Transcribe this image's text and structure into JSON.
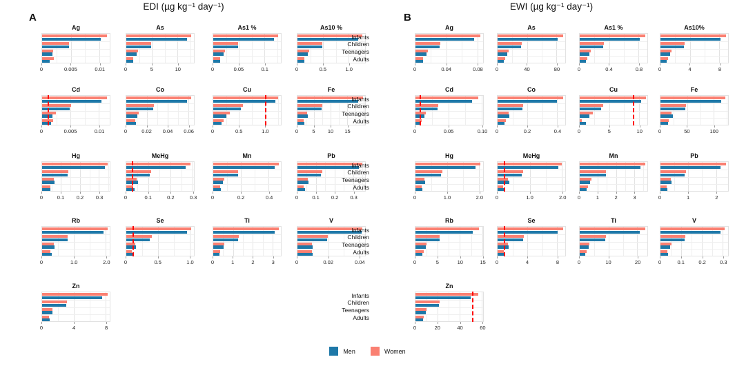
{
  "figure": {
    "panel_a_letter": "A",
    "panel_a_title": "EDI (µg kg⁻¹ day⁻¹)",
    "panel_b_letter": "B",
    "panel_b_title": "EWI (µg kg⁻¹ day⁻¹)"
  },
  "categories": [
    "Infants",
    "Children",
    "Teenagers",
    "Adults"
  ],
  "legend": {
    "men_label": "Men",
    "women_label": "Women"
  },
  "colors": {
    "men": "#1E78A8",
    "women": "#FA8072",
    "guideline": "#FF0000",
    "grid_major": "#e3e3e3",
    "grid_minor": "#efefef"
  },
  "chart_data": [
    {
      "panel": "A",
      "type": "bar",
      "orientation": "horizontal",
      "title": "EDI (µg kg⁻¹ day⁻¹)",
      "categories": [
        "Infants",
        "Children",
        "Teenagers",
        "Adults"
      ],
      "series_names": [
        "Men",
        "Women"
      ],
      "charts": [
        {
          "element": "Ag",
          "tick_labels": [
            "0",
            "0.005",
            "0.01"
          ],
          "ticks": [
            0,
            0.005,
            0.01
          ],
          "xmax": 0.0118,
          "guideline": null,
          "women": [
            0.0113,
            0.0047,
            0.0019,
            0.002
          ],
          "men": [
            0.0102,
            0.0047,
            0.0018,
            0.0013
          ]
        },
        {
          "element": "As",
          "tick_labels": [
            "0",
            "5",
            "10"
          ],
          "ticks": [
            0,
            5,
            10
          ],
          "xmax": 13.2,
          "guideline": null,
          "women": [
            12.7,
            4.9,
            2.3,
            1.4
          ],
          "men": [
            11.9,
            4.8,
            2.0,
            1.3
          ]
        },
        {
          "element": "As1 %",
          "tick_labels": [
            "0",
            "0.05",
            "0.1"
          ],
          "ticks": [
            0,
            0.05,
            0.1
          ],
          "xmax": 0.132,
          "guideline": null,
          "women": [
            0.127,
            0.049,
            0.023,
            0.014
          ],
          "men": [
            0.119,
            0.048,
            0.02,
            0.013
          ]
        },
        {
          "element": "As10 %",
          "tick_labels": [
            "0",
            "0.5",
            "1.0"
          ],
          "ticks": [
            0,
            0.5,
            1.0
          ],
          "xmax": 1.32,
          "guideline": null,
          "women": [
            1.27,
            0.49,
            0.23,
            0.14
          ],
          "men": [
            1.19,
            0.48,
            0.2,
            0.13
          ]
        },
        {
          "element": "Cd",
          "tick_labels": [
            "0",
            "0.005",
            "0.01"
          ],
          "ticks": [
            0,
            0.005,
            0.01
          ],
          "xmax": 0.0119,
          "guideline": 0.001,
          "women": [
            0.0114,
            0.0051,
            0.0024,
            0.0019
          ],
          "men": [
            0.0105,
            0.0049,
            0.0018,
            0.0016
          ]
        },
        {
          "element": "Co",
          "tick_labels": [
            "0",
            "0.02",
            "0.04",
            "0.06"
          ],
          "ticks": [
            0,
            0.02,
            0.04,
            0.06
          ],
          "xmax": 0.0655,
          "guideline": null,
          "women": [
            0.063,
            0.027,
            0.012,
            0.009
          ],
          "men": [
            0.059,
            0.026,
            0.0105,
            0.0092
          ]
        },
        {
          "element": "Cu",
          "tick_labels": [
            "0",
            "0.5",
            "1.0"
          ],
          "ticks": [
            0,
            0.5,
            1.0
          ],
          "xmax": 1.31,
          "guideline": 1.0,
          "women": [
            1.26,
            0.58,
            0.32,
            0.2
          ],
          "men": [
            1.2,
            0.53,
            0.25,
            0.16
          ]
        },
        {
          "element": "Fe",
          "tick_labels": [
            "0",
            "5",
            "10",
            "15"
          ],
          "ticks": [
            0,
            5,
            10,
            15
          ],
          "xmax": 20.4,
          "guideline": null,
          "women": [
            19.8,
            7.5,
            2.9,
            1.9
          ],
          "men": [
            18.3,
            7.3,
            3.1,
            2.1
          ]
        },
        {
          "element": "Hg",
          "tick_labels": [
            "0",
            "0.1",
            "0.2",
            "0.3"
          ],
          "ticks": [
            0,
            0.1,
            0.2,
            0.3
          ],
          "xmax": 0.357,
          "guideline": null,
          "women": [
            0.345,
            0.14,
            0.062,
            0.042
          ],
          "men": [
            0.33,
            0.133,
            0.066,
            0.045
          ]
        },
        {
          "element": "MeHg",
          "tick_labels": [
            "0",
            "0.1",
            "0.2",
            "0.3"
          ],
          "ticks": [
            0,
            0.1,
            0.2,
            0.3
          ],
          "xmax": 0.306,
          "guideline": 0.024,
          "women": [
            0.29,
            0.113,
            0.046,
            0.031
          ],
          "men": [
            0.27,
            0.107,
            0.052,
            0.037
          ]
        },
        {
          "element": "Mn",
          "tick_labels": [
            "0",
            "0.2",
            "0.4"
          ],
          "ticks": [
            0,
            0.2,
            0.4
          ],
          "xmax": 0.487,
          "guideline": null,
          "women": [
            0.47,
            0.18,
            0.078,
            0.049
          ],
          "men": [
            0.44,
            0.178,
            0.07,
            0.055
          ]
        },
        {
          "element": "Pb",
          "tick_labels": [
            "0",
            "0.1",
            "0.2",
            "0.3"
          ],
          "ticks": [
            0,
            0.1,
            0.2,
            0.3
          ],
          "xmax": 0.363,
          "guideline": null,
          "women": [
            0.35,
            0.134,
            0.055,
            0.035
          ],
          "men": [
            0.33,
            0.125,
            0.06,
            0.042
          ]
        },
        {
          "element": "Rb",
          "tick_labels": [
            "0",
            "1.0",
            "2.0"
          ],
          "ticks": [
            0,
            1.0,
            2.0
          ],
          "xmax": 2.12,
          "guideline": null,
          "women": [
            2.05,
            0.81,
            0.36,
            0.27
          ],
          "men": [
            1.92,
            0.79,
            0.38,
            0.3
          ]
        },
        {
          "element": "Se",
          "tick_labels": [
            "0",
            "0.5",
            "1.0"
          ],
          "ticks": [
            0,
            0.5,
            1.0
          ],
          "xmax": 1.07,
          "guideline": 0.095,
          "women": [
            1.03,
            0.4,
            0.14,
            0.085
          ],
          "men": [
            0.96,
            0.37,
            0.155,
            0.1
          ]
        },
        {
          "element": "Ti",
          "tick_labels": [
            "0",
            "1",
            "2",
            "3"
          ],
          "ticks": [
            0,
            1,
            2,
            3
          ],
          "xmax": 3.42,
          "guideline": null,
          "women": [
            3.3,
            1.3,
            0.55,
            0.34
          ],
          "men": [
            3.1,
            1.25,
            0.51,
            0.32
          ]
        },
        {
          "element": "V",
          "tick_labels": [
            "0",
            "0.02",
            "0.04"
          ],
          "ticks": [
            0,
            0.02,
            0.04
          ],
          "xmax": 0.0438,
          "guideline": null,
          "women": [
            0.042,
            0.0198,
            0.0095,
            0.0095
          ],
          "men": [
            0.0415,
            0.019,
            0.0098,
            0.01
          ]
        },
        {
          "element": "Zn",
          "tick_labels": [
            "0",
            "4",
            "8"
          ],
          "ticks": [
            0,
            4,
            8
          ],
          "xmax": 8.5,
          "guideline": null,
          "women": [
            8.2,
            3.1,
            1.33,
            0.87
          ],
          "men": [
            7.55,
            3.05,
            1.28,
            0.95
          ]
        }
      ]
    },
    {
      "panel": "B",
      "type": "bar",
      "orientation": "horizontal",
      "title": "EWI (µg kg⁻¹ day⁻¹)",
      "categories": [
        "Infants",
        "Children",
        "Teenagers",
        "Adults"
      ],
      "series_names": [
        "Men",
        "Women"
      ],
      "charts": [
        {
          "element": "Ag",
          "tick_labels": [
            "0",
            "0.04",
            "0.08"
          ],
          "ticks": [
            0,
            0.04,
            0.08
          ],
          "xmax": 0.0875,
          "guideline": null,
          "women": [
            0.084,
            0.032,
            0.016,
            0.01
          ],
          "men": [
            0.076,
            0.031,
            0.014,
            0.0095
          ]
        },
        {
          "element": "As",
          "tick_labels": [
            "0",
            "40",
            "80"
          ],
          "ticks": [
            0,
            40,
            80
          ],
          "xmax": 92,
          "guideline": null,
          "women": [
            89,
            33,
            15,
            10
          ],
          "men": [
            82,
            32,
            13,
            8
          ]
        },
        {
          "element": "As1 %",
          "tick_labels": [
            "0",
            "0.4",
            "0.8"
          ],
          "ticks": [
            0,
            0.4,
            0.8
          ],
          "xmax": 0.92,
          "guideline": null,
          "women": [
            0.89,
            0.33,
            0.15,
            0.1
          ],
          "men": [
            0.82,
            0.32,
            0.13,
            0.08
          ]
        },
        {
          "element": "As10%",
          "tick_labels": [
            "0",
            "4",
            "8"
          ],
          "ticks": [
            0,
            4,
            8
          ],
          "xmax": 9.2,
          "guideline": null,
          "women": [
            8.9,
            3.3,
            1.5,
            1.0
          ],
          "men": [
            8.2,
            3.2,
            1.3,
            0.8
          ]
        },
        {
          "element": "Cd",
          "tick_labels": [
            "0",
            "0.05",
            "0.10"
          ],
          "ticks": [
            0,
            0.05,
            0.1
          ],
          "xmax": 0.102,
          "guideline": 0.006,
          "women": [
            0.095,
            0.034,
            0.016,
            0.0095
          ],
          "men": [
            0.085,
            0.033,
            0.014,
            0.008
          ]
        },
        {
          "element": "Co",
          "tick_labels": [
            "0",
            "0.2",
            "0.4"
          ],
          "ticks": [
            0,
            0.2,
            0.4
          ],
          "xmax": 0.455,
          "guideline": null,
          "women": [
            0.44,
            0.17,
            0.075,
            0.055
          ],
          "men": [
            0.4,
            0.165,
            0.08,
            0.048
          ]
        },
        {
          "element": "Cu",
          "tick_labels": [
            "0",
            "5",
            "10"
          ],
          "ticks": [
            0,
            5,
            10
          ],
          "xmax": 11.4,
          "guideline": 9.0,
          "women": [
            11.2,
            4.0,
            2.2,
            0.3
          ],
          "men": [
            10.4,
            3.6,
            1.6,
            1.0
          ]
        },
        {
          "element": "Fe",
          "tick_labels": [
            "0",
            "50",
            "100"
          ],
          "ticks": [
            0,
            50,
            100
          ],
          "xmax": 127,
          "guideline": null,
          "women": [
            122,
            48,
            21,
            16
          ],
          "men": [
            114,
            47,
            23,
            14
          ]
        },
        {
          "element": "Hg",
          "tick_labels": [
            "0",
            "1.0",
            "2.0"
          ],
          "ticks": [
            0,
            1.0,
            2.0
          ],
          "xmax": 2.13,
          "guideline": null,
          "women": [
            2.05,
            0.84,
            0.29,
            0.2
          ],
          "men": [
            1.9,
            0.8,
            0.31,
            0.22
          ]
        },
        {
          "element": "MeHg",
          "tick_labels": [
            "0",
            "1.0",
            "2.0"
          ],
          "ticks": [
            0,
            1.0,
            2.0
          ],
          "xmax": 2.1,
          "guideline": 0.19,
          "women": [
            2.0,
            0.8,
            0.33,
            0.18
          ],
          "men": [
            1.88,
            0.76,
            0.36,
            0.2
          ]
        },
        {
          "element": "Mn",
          "tick_labels": [
            "0",
            "1",
            "2",
            "3"
          ],
          "ticks": [
            0,
            1,
            2,
            3
          ],
          "xmax": 3.73,
          "guideline": null,
          "women": [
            3.6,
            1.46,
            0.64,
            0.44
          ],
          "men": [
            3.35,
            1.44,
            0.57,
            0.38
          ]
        },
        {
          "element": "Pb",
          "tick_labels": [
            "0",
            "1",
            "2"
          ],
          "ticks": [
            0,
            1,
            2
          ],
          "xmax": 2.43,
          "guideline": null,
          "women": [
            2.35,
            0.91,
            0.37,
            0.22
          ],
          "men": [
            2.15,
            0.88,
            0.4,
            0.26
          ]
        },
        {
          "element": "Rb",
          "tick_labels": [
            "0",
            "5",
            "10",
            "15"
          ],
          "ticks": [
            0,
            5,
            10,
            15
          ],
          "xmax": 15.2,
          "guideline": null,
          "women": [
            14.2,
            5.5,
            2.5,
            1.8
          ],
          "men": [
            12.8,
            5.4,
            2.3,
            1.6
          ]
        },
        {
          "element": "Se",
          "tick_labels": [
            "0",
            "4",
            "8"
          ],
          "ticks": [
            0,
            4,
            8
          ],
          "xmax": 9.1,
          "guideline": 0.85,
          "women": [
            8.8,
            3.5,
            1.4,
            0.8
          ],
          "men": [
            8.1,
            3.4,
            1.5,
            0.95
          ]
        },
        {
          "element": "Ti",
          "tick_labels": [
            "0",
            "10",
            "20"
          ],
          "ticks": [
            0,
            10,
            20
          ],
          "xmax": 23.5,
          "guideline": null,
          "women": [
            22.8,
            9.0,
            3.4,
            2.3
          ],
          "men": [
            20.8,
            8.8,
            3.1,
            2.0
          ]
        },
        {
          "element": "V",
          "tick_labels": [
            "0",
            "0.1",
            "0.2",
            "0.3"
          ],
          "ticks": [
            0,
            0.1,
            0.2,
            0.3
          ],
          "xmax": 0.325,
          "guideline": null,
          "women": [
            0.31,
            0.12,
            0.052,
            0.032
          ],
          "men": [
            0.29,
            0.117,
            0.045,
            0.037
          ]
        },
        {
          "element": "Zn",
          "tick_labels": [
            "0",
            "20",
            "40",
            "60"
          ],
          "ticks": [
            0,
            20,
            40,
            60
          ],
          "xmax": 61,
          "guideline": 51,
          "women": [
            56.7,
            21.6,
            10.1,
            7.6
          ],
          "men": [
            50,
            21,
            9.3,
            6.6
          ]
        }
      ]
    }
  ]
}
